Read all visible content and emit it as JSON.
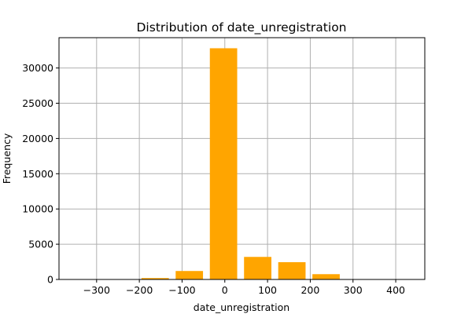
{
  "chart_data": {
    "type": "bar",
    "title": "Distribution of date_unregistration",
    "xlabel": "date_unregistration",
    "ylabel": "Frequency",
    "xlim": [
      -388,
      468
    ],
    "ylim": [
      0,
      34300
    ],
    "xticks": [
      -300,
      -200,
      -100,
      0,
      100,
      200,
      300,
      400
    ],
    "xtick_labels": [
      "−300",
      "−200",
      "−100",
      "0",
      "100",
      "200",
      "300",
      "400"
    ],
    "yticks": [
      0,
      5000,
      10000,
      15000,
      20000,
      25000,
      30000
    ],
    "ytick_labels": [
      "0",
      "5000",
      "10000",
      "15000",
      "20000",
      "25000",
      "30000"
    ],
    "grid": true,
    "bar_color": "#ffa500",
    "bars": [
      {
        "x0": -365,
        "x1": -301,
        "value": 0
      },
      {
        "x0": -285,
        "x1": -221,
        "value": 0
      },
      {
        "x0": -195,
        "x1": -131,
        "value": 200
      },
      {
        "x0": -115,
        "x1": -51,
        "value": 1200
      },
      {
        "x0": -35,
        "x1": 29,
        "value": 32800
      },
      {
        "x0": 45,
        "x1": 109,
        "value": 3200
      },
      {
        "x0": 125,
        "x1": 189,
        "value": 2450
      },
      {
        "x0": 205,
        "x1": 269,
        "value": 750
      },
      {
        "x0": 285,
        "x1": 349,
        "value": 0
      },
      {
        "x0": 365,
        "x1": 429,
        "value": 0
      }
    ]
  }
}
